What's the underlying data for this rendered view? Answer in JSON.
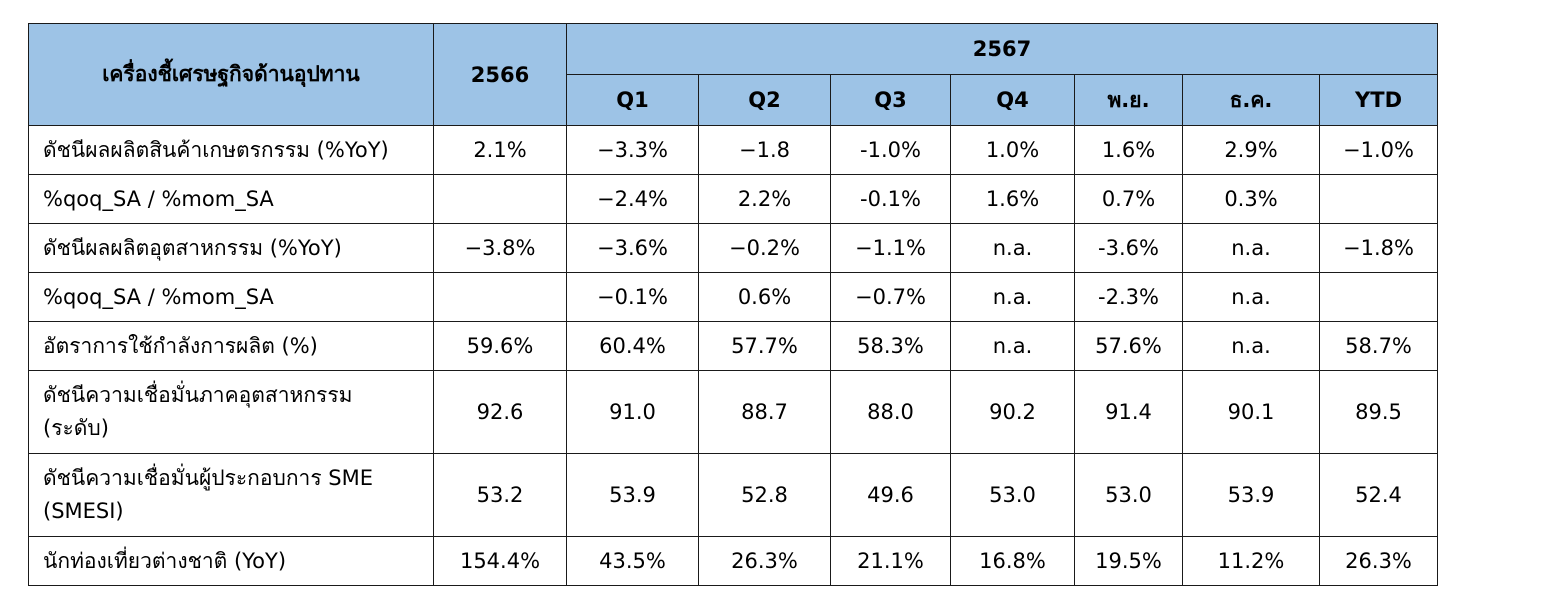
{
  "colors": {
    "header_bg": "#9dc3e6",
    "border": "#1a1a1a",
    "body_bg": "#ffffff"
  },
  "header": {
    "indicator_label": "เครื่องชี้เศรษฐกิจด้านอุปทาน",
    "year_prev": "2566",
    "year_curr": "2567",
    "periods": [
      "Q1",
      "Q2",
      "Q3",
      "Q4",
      "พ.ย.",
      "ธ.ค.",
      "YTD"
    ]
  },
  "rows": [
    {
      "label": "ดัชนีผลผลิตสินค้าเกษตรกรรม (%YoY)",
      "y2566": "2.1%",
      "values": [
        "−3.3%",
        "−1.8",
        "-1.0%",
        "1.0%",
        "1.6%",
        "2.9%",
        "−1.0%"
      ]
    },
    {
      "label": "%qoq_SA / %mom_SA",
      "y2566": "",
      "values": [
        "−2.4%",
        "2.2%",
        "-0.1%",
        "1.6%",
        "0.7%",
        "0.3%",
        ""
      ]
    },
    {
      "label": "ดัชนีผลผลิตอุตสาหกรรม (%YoY)",
      "y2566": "−3.8%",
      "values": [
        "−3.6%",
        "−0.2%",
        "−1.1%",
        "n.a.",
        "-3.6%",
        "n.a.",
        "−1.8%"
      ]
    },
    {
      "label": "%qoq_SA / %mom_SA",
      "y2566": "",
      "values": [
        "−0.1%",
        "0.6%",
        "−0.7%",
        "n.a.",
        "-2.3%",
        "n.a.",
        ""
      ]
    },
    {
      "label": "อัตราการใช้กำลังการผลิต (%)",
      "y2566": "59.6%",
      "values": [
        "60.4%",
        "57.7%",
        "58.3%",
        "n.a.",
        "57.6%",
        "n.a.",
        "58.7%"
      ]
    },
    {
      "label_line1": "ดัชนีความเชื่อมั่นภาคอุตสาหกรรม",
      "label_line2": "(ระดับ)",
      "y2566": "92.6",
      "values": [
        "91.0",
        "88.7",
        "88.0",
        "90.2",
        "91.4",
        "90.1",
        "89.5"
      ]
    },
    {
      "label_line1": "ดัชนีความเชื่อมั่นผู้ประกอบการ SME",
      "label_line2": "(SMESI)",
      "y2566": "53.2",
      "values": [
        "53.9",
        "52.8",
        "49.6",
        "53.0",
        "53.0",
        "53.9",
        "52.4"
      ]
    },
    {
      "label": "นักท่องเที่ยวต่างชาติ (YoY)",
      "y2566": "154.4%",
      "values": [
        "43.5%",
        "26.3%",
        "21.1%",
        "16.8%",
        "19.5%",
        "11.2%",
        "26.3%"
      ]
    }
  ]
}
